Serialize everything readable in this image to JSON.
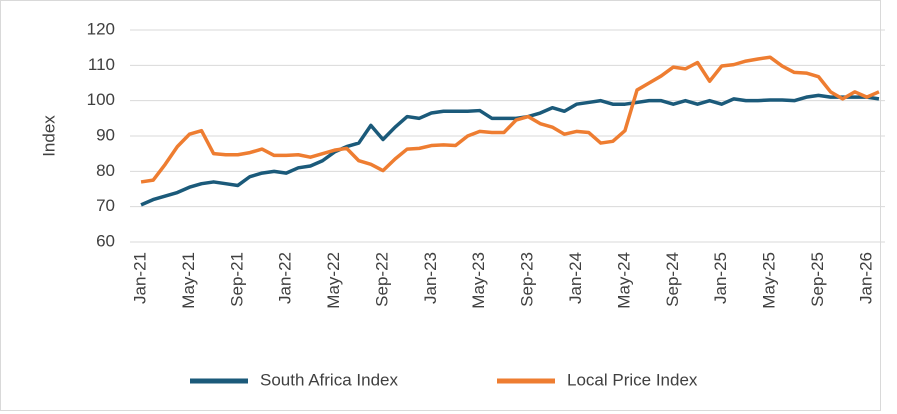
{
  "chart_data": {
    "type": "line",
    "y_label": "Index",
    "categories": [
      "Jan-21",
      null,
      null,
      null,
      "May-21",
      null,
      null,
      null,
      "Sep-21",
      null,
      null,
      null,
      "Jan-22",
      null,
      null,
      null,
      "May-22",
      null,
      null,
      null,
      "Sep-22",
      null,
      null,
      null,
      "Jan-23",
      null,
      null,
      null,
      "May-23",
      null,
      null,
      null,
      "Sep-23",
      null,
      null,
      null,
      "Jan-24",
      null,
      null,
      null,
      "May-24",
      null,
      null,
      null,
      "Sep-24",
      null,
      null,
      null,
      "Jan-25",
      null,
      null,
      null,
      "May-25",
      null,
      null,
      null,
      "Sep-25",
      null,
      null,
      null,
      "Jan-26",
      null
    ],
    "series": [
      {
        "name": "South Africa Index",
        "color": "#1b5a7a",
        "values": [
          70.5,
          72,
          73,
          74,
          75.5,
          76.5,
          77,
          76.5,
          76,
          78.5,
          79.5,
          80,
          79.5,
          81,
          81.5,
          83,
          85.5,
          87,
          88,
          93,
          89,
          92.5,
          95.5,
          95,
          96.5,
          97,
          97,
          97,
          97.2,
          95,
          95,
          95,
          95.5,
          96.5,
          98,
          97,
          99,
          99.5,
          100,
          99,
          99,
          99.5,
          100,
          100,
          99,
          100,
          99,
          100,
          99,
          100.5,
          100,
          100,
          100.2,
          100.2,
          100,
          101,
          101.5,
          101,
          101,
          101,
          101,
          100.5
        ]
      },
      {
        "name": "Local Price Index",
        "color": "#ee7d31",
        "values": [
          77,
          77.5,
          82,
          87,
          90.5,
          91.5,
          85,
          84.7,
          84.7,
          85.3,
          86.3,
          84.5,
          84.5,
          84.7,
          84,
          85,
          86,
          86.5,
          83,
          82,
          80.2,
          83.5,
          86.3,
          86.5,
          87.3,
          87.5,
          87.3,
          90,
          91.3,
          91,
          91,
          94.5,
          95.5,
          93.5,
          92.5,
          90.5,
          91.3,
          91,
          88,
          88.5,
          91.5,
          103,
          105,
          107,
          109.5,
          109,
          110.8,
          105.5,
          109.8,
          110.2,
          111.2,
          111.8,
          112.3,
          109.8,
          108,
          107.8,
          106.8,
          102.5,
          100.5,
          102.5,
          101,
          102.5
        ]
      }
    ],
    "ylim": [
      60,
      120
    ],
    "yticks": [
      60,
      70,
      80,
      90,
      100,
      110,
      120
    ],
    "grid": true
  }
}
